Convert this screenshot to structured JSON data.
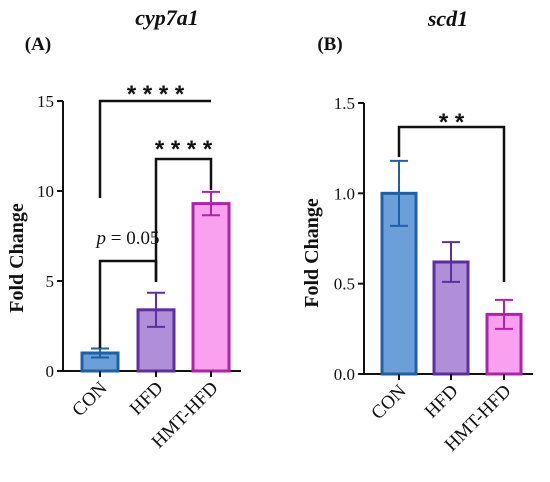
{
  "chart_data": [
    {
      "type": "bar",
      "panel_label": "(A)",
      "title": "cyp7a1",
      "ylabel": "Fold Change",
      "xlabel": "",
      "ylim": [
        0,
        15
      ],
      "yticks": [
        "0",
        "5",
        "10",
        "15"
      ],
      "categories": [
        "CON",
        "HFD",
        "HMT-HFD"
      ],
      "values": [
        1.0,
        3.4,
        9.3
      ],
      "errors": [
        0.25,
        0.95,
        0.65
      ],
      "colors": {
        "fill": [
          "#6a9fd8",
          "#b08ed8",
          "#f9a0ee"
        ],
        "stroke": [
          "#1f5fa8",
          "#5b2fa0",
          "#b023a8"
        ]
      },
      "annotations": [
        {
          "from": 0,
          "to": 2,
          "label": "* * * *"
        },
        {
          "from": 1,
          "to": 2,
          "label": "* * * *"
        },
        {
          "from": 0,
          "to": 1,
          "label_italic": "p",
          "label_rest": " = 0.05"
        }
      ]
    },
    {
      "type": "bar",
      "panel_label": "(B)",
      "title": "scd1",
      "ylabel": "Fold Change",
      "xlabel": "",
      "ylim": [
        0,
        1.5
      ],
      "yticks": [
        "0.0",
        "0.5",
        "1.0",
        "1.5"
      ],
      "categories": [
        "CON",
        "HFD",
        "HMT-HFD"
      ],
      "values": [
        1.0,
        0.62,
        0.33
      ],
      "errors": [
        0.18,
        0.11,
        0.08
      ],
      "colors": {
        "fill": [
          "#6a9fd8",
          "#b08ed8",
          "#f9a0ee"
        ],
        "stroke": [
          "#1f5fa8",
          "#5b2fa0",
          "#b023a8"
        ]
      },
      "annotations": [
        {
          "from": 0,
          "to": 2,
          "label": "* *"
        }
      ]
    }
  ]
}
